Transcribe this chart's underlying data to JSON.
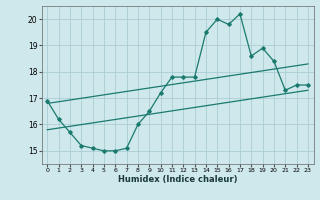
{
  "xlabel": "Humidex (Indice chaleur)",
  "bg_color": "#cfe8ec",
  "grid_color": "#aacdd4",
  "line_color": "#1a7a6e",
  "xlim": [
    -0.5,
    23.5
  ],
  "ylim": [
    14.5,
    20.5
  ],
  "yticks": [
    15,
    16,
    17,
    18,
    19,
    20
  ],
  "xticks": [
    0,
    1,
    2,
    3,
    4,
    5,
    6,
    7,
    8,
    9,
    10,
    11,
    12,
    13,
    14,
    15,
    16,
    17,
    18,
    19,
    20,
    21,
    22,
    23
  ],
  "series1_x": [
    0,
    1,
    2,
    3,
    4,
    5,
    6,
    7,
    8,
    9,
    10,
    11,
    12,
    13,
    14,
    15,
    16,
    17,
    18,
    19,
    20,
    21,
    22,
    23
  ],
  "series1_y": [
    16.9,
    16.2,
    15.7,
    15.2,
    15.1,
    15.0,
    15.0,
    15.1,
    16.0,
    16.5,
    17.2,
    17.8,
    17.8,
    17.8,
    19.5,
    20.0,
    19.8,
    20.2,
    18.6,
    18.9,
    18.4,
    17.3,
    17.5,
    17.5
  ],
  "series2_x": [
    0,
    23
  ],
  "series2_y": [
    15.8,
    17.3
  ],
  "series3_x": [
    0,
    23
  ],
  "series3_y": [
    16.8,
    18.3
  ]
}
